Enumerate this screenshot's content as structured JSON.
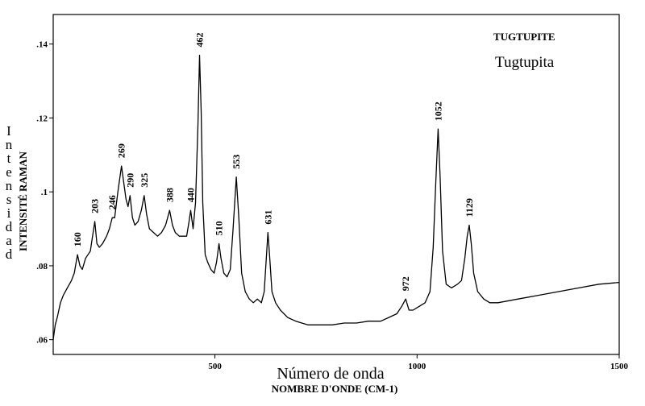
{
  "chart_data": {
    "type": "line",
    "title": "TUGTUPITE",
    "subtitle": "Tugtupita",
    "xlabel": "NOMBRE D'ONDE (CM-1)",
    "xlabel_alt": "Número de onda",
    "ylabel": "INTENSITÉ RAMAN",
    "ylabel_alt": "Intensidad",
    "xlim": [
      100,
      1500
    ],
    "ylim": [
      0.056,
      0.148
    ],
    "x_ticks": [
      500,
      1000,
      1500
    ],
    "x_tick_labels": [
      "500",
      "1000",
      "1500"
    ],
    "y_ticks": [
      0.06,
      0.08,
      0.1,
      0.12,
      0.14
    ],
    "y_tick_labels": [
      ".06",
      ".08",
      ".1",
      ".12",
      ".14"
    ],
    "grid": false,
    "line_color": "#000000",
    "series": [
      {
        "points": [
          [
            100,
            0.06
          ],
          [
            105,
            0.064
          ],
          [
            110,
            0.066
          ],
          [
            118,
            0.07
          ],
          [
            125,
            0.072
          ],
          [
            135,
            0.074
          ],
          [
            145,
            0.076
          ],
          [
            152,
            0.078
          ],
          [
            160,
            0.083
          ],
          [
            166,
            0.08
          ],
          [
            172,
            0.079
          ],
          [
            180,
            0.082
          ],
          [
            186,
            0.083
          ],
          [
            192,
            0.084
          ],
          [
            196,
            0.087
          ],
          [
            203,
            0.092
          ],
          [
            208,
            0.086
          ],
          [
            214,
            0.085
          ],
          [
            222,
            0.086
          ],
          [
            232,
            0.088
          ],
          [
            239,
            0.09
          ],
          [
            246,
            0.093
          ],
          [
            252,
            0.093
          ],
          [
            260,
            0.1
          ],
          [
            269,
            0.107
          ],
          [
            275,
            0.102
          ],
          [
            280,
            0.098
          ],
          [
            285,
            0.096
          ],
          [
            290,
            0.099
          ],
          [
            296,
            0.093
          ],
          [
            302,
            0.091
          ],
          [
            310,
            0.092
          ],
          [
            318,
            0.095
          ],
          [
            325,
            0.099
          ],
          [
            331,
            0.094
          ],
          [
            338,
            0.09
          ],
          [
            348,
            0.089
          ],
          [
            358,
            0.088
          ],
          [
            368,
            0.089
          ],
          [
            378,
            0.091
          ],
          [
            388,
            0.095
          ],
          [
            395,
            0.091
          ],
          [
            402,
            0.089
          ],
          [
            412,
            0.088
          ],
          [
            422,
            0.088
          ],
          [
            430,
            0.088
          ],
          [
            436,
            0.092
          ],
          [
            440,
            0.095
          ],
          [
            446,
            0.09
          ],
          [
            452,
            0.097
          ],
          [
            458,
            0.118
          ],
          [
            462,
            0.137
          ],
          [
            466,
            0.122
          ],
          [
            470,
            0.097
          ],
          [
            476,
            0.083
          ],
          [
            482,
            0.081
          ],
          [
            490,
            0.079
          ],
          [
            498,
            0.078
          ],
          [
            504,
            0.081
          ],
          [
            510,
            0.086
          ],
          [
            515,
            0.082
          ],
          [
            522,
            0.078
          ],
          [
            530,
            0.077
          ],
          [
            538,
            0.079
          ],
          [
            545,
            0.09
          ],
          [
            553,
            0.104
          ],
          [
            559,
            0.093
          ],
          [
            566,
            0.078
          ],
          [
            575,
            0.073
          ],
          [
            585,
            0.071
          ],
          [
            595,
            0.07
          ],
          [
            605,
            0.071
          ],
          [
            615,
            0.07
          ],
          [
            622,
            0.073
          ],
          [
            627,
            0.082
          ],
          [
            631,
            0.089
          ],
          [
            635,
            0.083
          ],
          [
            641,
            0.073
          ],
          [
            650,
            0.07
          ],
          [
            662,
            0.068
          ],
          [
            680,
            0.066
          ],
          [
            700,
            0.065
          ],
          [
            730,
            0.064
          ],
          [
            760,
            0.064
          ],
          [
            790,
            0.064
          ],
          [
            820,
            0.0645
          ],
          [
            850,
            0.0645
          ],
          [
            880,
            0.065
          ],
          [
            910,
            0.065
          ],
          [
            930,
            0.066
          ],
          [
            950,
            0.067
          ],
          [
            962,
            0.069
          ],
          [
            972,
            0.071
          ],
          [
            980,
            0.068
          ],
          [
            990,
            0.068
          ],
          [
            1005,
            0.069
          ],
          [
            1020,
            0.07
          ],
          [
            1032,
            0.073
          ],
          [
            1040,
            0.085
          ],
          [
            1046,
            0.102
          ],
          [
            1052,
            0.117
          ],
          [
            1057,
            0.104
          ],
          [
            1063,
            0.084
          ],
          [
            1072,
            0.075
          ],
          [
            1085,
            0.074
          ],
          [
            1100,
            0.075
          ],
          [
            1110,
            0.076
          ],
          [
            1118,
            0.082
          ],
          [
            1124,
            0.088
          ],
          [
            1129,
            0.091
          ],
          [
            1134,
            0.086
          ],
          [
            1140,
            0.078
          ],
          [
            1150,
            0.073
          ],
          [
            1165,
            0.071
          ],
          [
            1180,
            0.07
          ],
          [
            1200,
            0.07
          ],
          [
            1250,
            0.071
          ],
          [
            1300,
            0.072
          ],
          [
            1350,
            0.073
          ],
          [
            1400,
            0.074
          ],
          [
            1450,
            0.075
          ],
          [
            1500,
            0.0755
          ]
        ]
      }
    ],
    "peak_labels": [
      {
        "x": 160,
        "text": "160"
      },
      {
        "x": 203,
        "text": "203"
      },
      {
        "x": 246,
        "text": "246"
      },
      {
        "x": 269,
        "text": "269"
      },
      {
        "x": 290,
        "text": "290"
      },
      {
        "x": 325,
        "text": "325"
      },
      {
        "x": 388,
        "text": "388"
      },
      {
        "x": 440,
        "text": "440"
      },
      {
        "x": 462,
        "text": "462"
      },
      {
        "x": 510,
        "text": "510"
      },
      {
        "x": 553,
        "text": "553"
      },
      {
        "x": 631,
        "text": "631"
      },
      {
        "x": 972,
        "text": "972"
      },
      {
        "x": 1052,
        "text": "1052"
      },
      {
        "x": 1129,
        "text": "1129"
      }
    ]
  }
}
